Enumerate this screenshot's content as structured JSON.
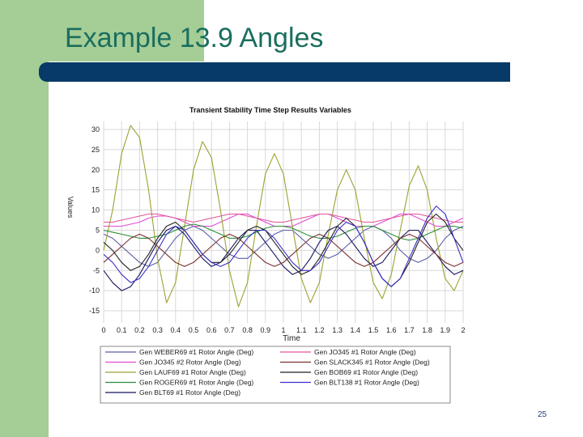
{
  "slide": {
    "title": "Example 13.9 Angles",
    "page_number": "25"
  },
  "colors": {
    "left_bar": "#a5cd96",
    "title_text": "#1a6e5e",
    "title_rule": "#073a66"
  },
  "chart_data": {
    "type": "line",
    "title": "Transient Stability Time Step Results Variables",
    "xlabel": "Time",
    "ylabel": "Values",
    "xlim": [
      0,
      2
    ],
    "ylim": [
      -18,
      32
    ],
    "x_ticks": [
      "0",
      "0.1",
      "0.2",
      "0.3",
      "0.4",
      "0.5",
      "0.6",
      "0.7",
      "0.8",
      "0.9",
      "1",
      "1.1",
      "1.2",
      "1.3",
      "1.4",
      "1.5",
      "1.6",
      "1.7",
      "1.8",
      "1.9",
      "2"
    ],
    "y_ticks": [
      "30",
      "25",
      "20",
      "15",
      "10",
      "5",
      "0",
      "-5",
      "-10",
      "-15"
    ],
    "grid": true,
    "legend_position": "bottom",
    "x": [
      0,
      0.05,
      0.1,
      0.15,
      0.2,
      0.25,
      0.3,
      0.35,
      0.4,
      0.45,
      0.5,
      0.55,
      0.6,
      0.65,
      0.7,
      0.75,
      0.8,
      0.85,
      0.9,
      0.95,
      1,
      1.05,
      1.1,
      1.15,
      1.2,
      1.25,
      1.3,
      1.35,
      1.4,
      1.45,
      1.5,
      1.55,
      1.6,
      1.65,
      1.7,
      1.75,
      1.8,
      1.85,
      1.9,
      1.95,
      2
    ],
    "series": [
      {
        "name": "Gen WEBER69 #1 Rotor Angle (Deg)",
        "color": "#5b5ea6",
        "values": [
          4,
          3,
          1,
          -1,
          -3,
          -4,
          -3,
          0,
          3,
          5,
          6,
          5,
          3,
          1,
          -1,
          -2,
          -2,
          0,
          2,
          4,
          5,
          5,
          3,
          1,
          -1,
          -2,
          -1,
          1,
          3,
          5,
          6,
          5,
          3,
          0,
          -2,
          -3,
          -2,
          0,
          3,
          5,
          6
        ]
      },
      {
        "name": "Gen JO345 #2 Rotor Angle (Deg)",
        "color": "#e24ad9",
        "values": [
          6,
          6,
          6,
          6.5,
          7,
          8,
          8.5,
          8.5,
          8,
          7,
          6,
          6,
          6,
          7,
          8,
          9,
          9,
          8,
          7,
          6,
          6,
          6,
          7,
          8,
          9,
          9,
          8,
          7,
          6,
          6,
          6,
          7,
          8,
          9,
          9,
          8,
          7,
          6,
          6,
          7,
          8
        ]
      },
      {
        "name": "Gen LAUF69 #1 Rotor Angle (Deg)",
        "color": "#9da130",
        "values": [
          0,
          10,
          24,
          31,
          28,
          15,
          -2,
          -13,
          -8,
          6,
          20,
          27,
          23,
          10,
          -5,
          -14,
          -8,
          6,
          19,
          24,
          19,
          6,
          -7,
          -13,
          -8,
          4,
          15,
          20,
          15,
          3,
          -8,
          -12,
          -6,
          5,
          16,
          21,
          15,
          3,
          -7,
          -10,
          -5
        ]
      },
      {
        "name": "Gen ROGER69 #1 Rotor Angle (Deg)",
        "color": "#2a8f3a",
        "values": [
          5,
          4.5,
          4,
          3.5,
          3,
          3,
          3.5,
          4,
          5,
          6,
          6.5,
          6,
          5,
          4,
          3,
          3,
          3.5,
          4.5,
          5.5,
          6,
          6,
          5.5,
          4.5,
          3.5,
          3,
          3,
          3.5,
          4.5,
          5.5,
          6,
          6,
          5,
          4,
          3,
          2.5,
          3,
          4,
          5,
          6,
          6,
          5.5
        ]
      },
      {
        "name": "Gen BLT69 #1 Rotor Angle (Deg)",
        "color": "#151560",
        "values": [
          -5,
          -8,
          -10,
          -9,
          -6,
          -2,
          2,
          5,
          6,
          4,
          1,
          -2,
          -4,
          -3,
          0,
          3,
          5,
          5,
          2,
          -1,
          -4,
          -6,
          -5,
          -2,
          2,
          5,
          6,
          4,
          1,
          -2,
          -4,
          -3,
          0,
          3,
          5,
          5,
          2,
          -1,
          -4,
          -6,
          -5
        ]
      },
      {
        "name": "Gen JO345 #1 Rotor Angle (Deg)",
        "color": "#e0539b",
        "values": [
          7,
          7,
          7.5,
          8,
          8.5,
          9,
          9,
          8.5,
          8,
          7.5,
          7,
          7.5,
          8,
          8.5,
          9,
          9,
          8.5,
          8,
          7.5,
          7,
          7,
          7.5,
          8,
          8.5,
          9,
          9,
          8.5,
          8,
          7.5,
          7,
          7,
          7.5,
          8,
          8.5,
          9,
          9,
          8.5,
          8,
          7.5,
          7,
          7
        ]
      },
      {
        "name": "Gen SLACK345 #1 Rotor Angle (Deg)",
        "color": "#7a3030",
        "values": [
          -3,
          -1,
          1,
          3,
          4,
          3,
          1,
          -1,
          -3,
          -4,
          -3,
          -1,
          1,
          3,
          4,
          3,
          1,
          -1,
          -3,
          -4,
          -3,
          -1,
          1,
          3,
          4,
          3,
          1,
          -1,
          -3,
          -4,
          -3,
          -1,
          1,
          3,
          4,
          3,
          1,
          -1,
          -3,
          -4,
          -3
        ]
      },
      {
        "name": "Gen BOB69 #1 Rotor Angle (Deg)",
        "color": "#222222",
        "values": [
          2,
          0,
          -3,
          -5,
          -4,
          -1,
          3,
          6,
          7,
          5,
          2,
          -1,
          -3,
          -3,
          -1,
          2,
          5,
          6,
          5,
          2,
          -1,
          -4,
          -6,
          -5,
          -2,
          2,
          6,
          8,
          6,
          2,
          -3,
          -7,
          -9,
          -7,
          -3,
          2,
          7,
          9,
          7,
          3,
          0
        ]
      },
      {
        "name": "Gen BLT138 #1 Rotor Angle (Deg)",
        "color": "#3a2fc7",
        "values": [
          -1,
          -3,
          -6,
          -8,
          -7,
          -4,
          0,
          4,
          6,
          5,
          2,
          -1,
          -3,
          -4,
          -3,
          0,
          3,
          5,
          5,
          3,
          0,
          -3,
          -5,
          -5,
          -3,
          1,
          5,
          7,
          6,
          2,
          -3,
          -7,
          -9,
          -7,
          -2,
          3,
          8,
          11,
          9,
          3,
          -3
        ]
      }
    ]
  }
}
